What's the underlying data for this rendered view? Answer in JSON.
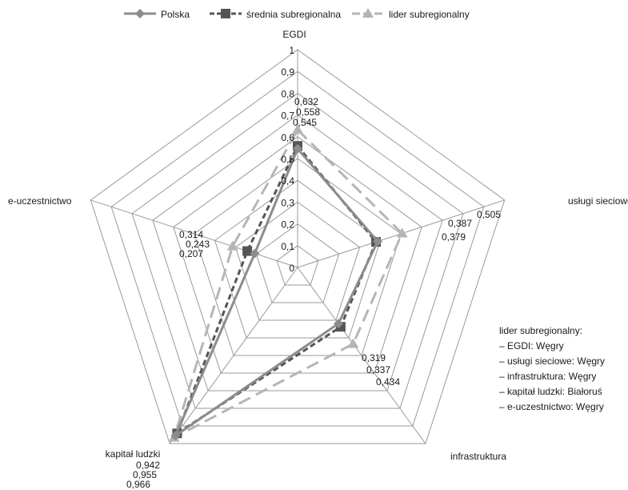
{
  "chart_data": {
    "type": "radar",
    "title": "",
    "axes": [
      "EGDI",
      "usługi sieciowe",
      "infrastruktura",
      "kapitał ludzki",
      "e-uczestnictwo"
    ],
    "radial_ticks": [
      "0",
      "0,1",
      "0,2",
      "0,3",
      "0,4",
      "0,5",
      "0,6",
      "0,7",
      "0,8",
      "0,9",
      "1"
    ],
    "rlim": [
      0,
      1
    ],
    "grid": true,
    "legend_position": "top",
    "series": [
      {
        "name": "Polska",
        "values": [
          0.545,
          0.387,
          0.319,
          0.955,
          0.207
        ],
        "color": "#8c8c8c",
        "style": "solid",
        "marker": "diamond"
      },
      {
        "name": "średnia subregionalna",
        "values": [
          0.558,
          0.379,
          0.337,
          0.942,
          0.243
        ],
        "color": "#555555",
        "style": "dashed",
        "marker": "square"
      },
      {
        "name": "lider subregionalny",
        "values": [
          0.632,
          0.505,
          0.434,
          0.966,
          0.314
        ],
        "color": "#b5b5b5",
        "style": "longdash",
        "marker": "triangle"
      }
    ],
    "value_labels": [
      [
        "0,632",
        "0,558",
        "0,545"
      ],
      [
        "0,505",
        "0,387",
        "0,379"
      ],
      [
        "0,319",
        "0,337",
        "0,434"
      ],
      [
        "0,942",
        "0,955",
        "0,966"
      ],
      [
        "0,314",
        "0,243",
        "0,207"
      ]
    ]
  },
  "note": {
    "title": "lider subregionalny:",
    "items": [
      "– EGDI: Węgry",
      "– usługi sieciowe: Węgry",
      "– infrastruktura: Węgry",
      "– kapitał ludzki: Białoruś",
      "– e-uczestnictwo: Węgry"
    ]
  }
}
